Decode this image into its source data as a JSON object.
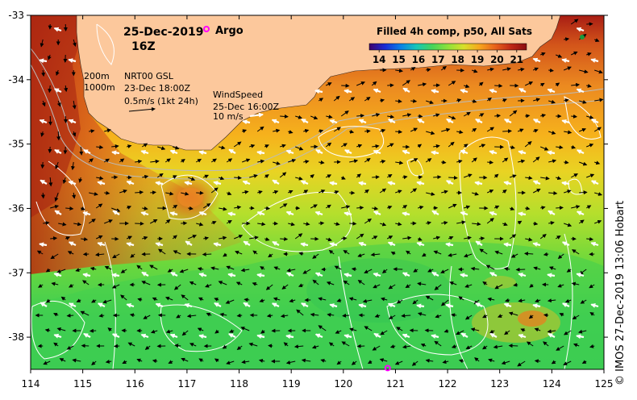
{
  "map": {
    "date_label": "25-Dec-2019",
    "hour_label": "16Z",
    "argo_label": "Argo",
    "product_title": "Filled 4h comp, p50, All Sats",
    "colorbar_ticks": [
      "14",
      "15",
      "16",
      "17",
      "18",
      "19",
      "20",
      "21"
    ],
    "colorbar_range": [
      13.5,
      21.5
    ],
    "legend_depth_1": "200m",
    "legend_depth_2": "1000m",
    "legend_gsl_title": "NRT00 GSL",
    "legend_gsl_time": "23-Dec 18:00Z",
    "legend_gsl_scale": "0.5m/s (1kt 24h)",
    "legend_wind_title": "WindSpeed",
    "legend_wind_time": "25-Dec 16:00Z",
    "legend_wind_scale": "10 m/s",
    "credit": "© IMOS 27-Dec-2019 13:06 Hobart",
    "lon_range": [
      114,
      125
    ],
    "lat_range": [
      -38.5,
      -33
    ],
    "lon_ticks": [
      "114",
      "115",
      "116",
      "117",
      "118",
      "119",
      "120",
      "121",
      "122",
      "123",
      "124",
      "125"
    ],
    "lat_ticks": [
      "-33",
      "-34",
      "-35",
      "-36",
      "-37",
      "-38"
    ],
    "argo_floats": [
      {
        "lon": 120.85,
        "lat": -38.48
      }
    ],
    "colors": {
      "land": "#fcc89c",
      "argo": "#ff00ff",
      "contour": "#ffffff",
      "colormap": [
        "#3e026b",
        "#1a2bd6",
        "#0a80e6",
        "#15c7b8",
        "#46d45a",
        "#8ee13a",
        "#d8e02a",
        "#f7a61d",
        "#e8621b",
        "#c02816",
        "#8a0d10"
      ]
    },
    "icons": [
      "argo-marker-icon",
      "current-arrow-icon",
      "wind-arrow-icon"
    ]
  }
}
